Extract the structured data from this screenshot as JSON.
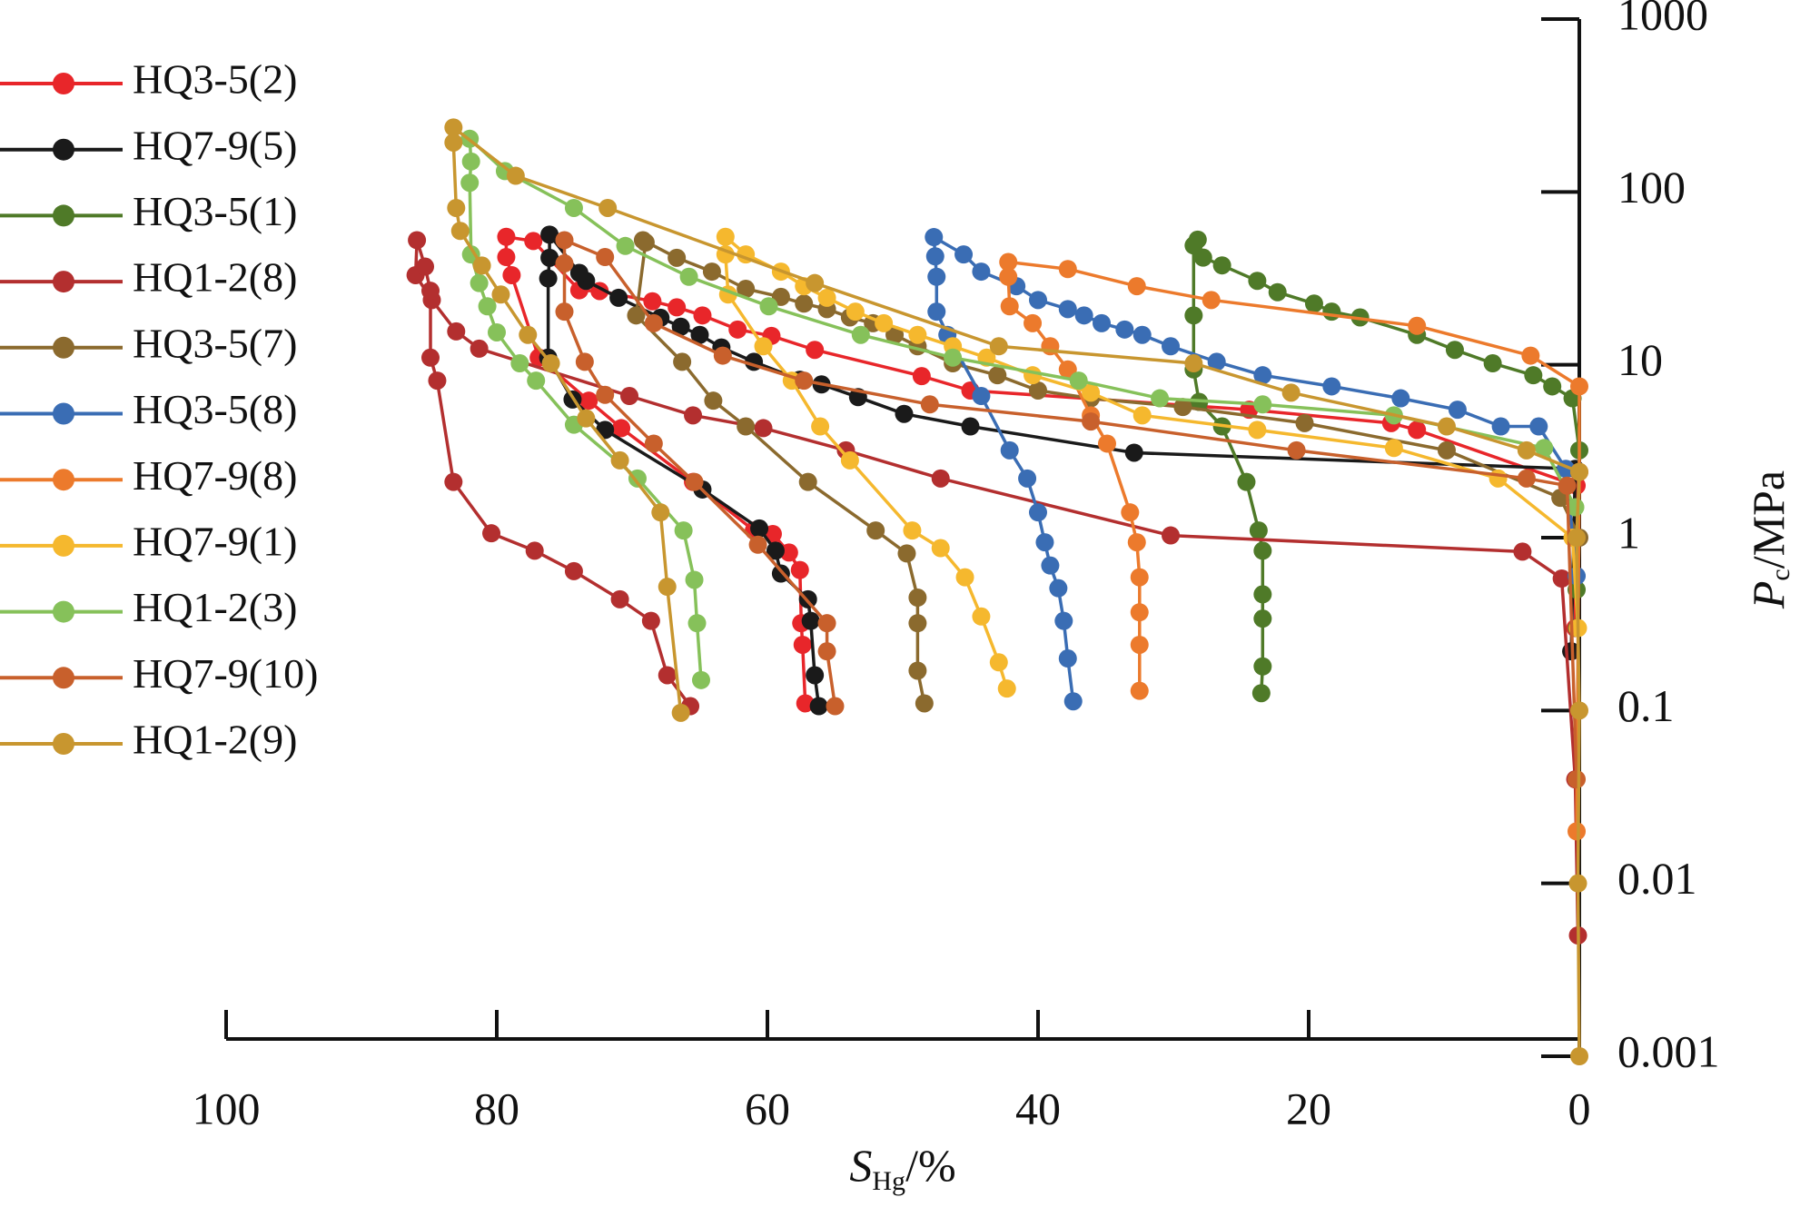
{
  "chart_data": {
    "type": "line",
    "x_label": {
      "symbol": "S",
      "subscript": "Hg",
      "unit": "/%"
    },
    "y_label": {
      "symbol": "P",
      "subscript": "c",
      "unit": "/MPa"
    },
    "xlim": [
      100,
      0
    ],
    "xticks": [
      100,
      80,
      60,
      40,
      20,
      0
    ],
    "ylim": [
      0.001,
      1000
    ],
    "yticks": [
      0.001,
      0.01,
      0.1,
      1,
      10,
      100,
      1000
    ],
    "ylog": true,
    "grid": false,
    "legend": "left",
    "series": [
      {
        "name": "HQ3-5(2)",
        "color": "#e8262a",
        "x": [
          0.3,
          0.2,
          12,
          13.9,
          24.4,
          45,
          48.6,
          56.5,
          59.7,
          62.2,
          64.8,
          66.7,
          68.5,
          72.4,
          73.9,
          77.3,
          79.3,
          79.3,
          78.9,
          76.9,
          73.2,
          70.8,
          65.5,
          61,
          59.6,
          58.4,
          57.6,
          57.5,
          57.4,
          57.2
        ],
        "values": [
          0.3,
          2,
          4.2,
          4.6,
          5.5,
          7.1,
          8.6,
          12.2,
          14.7,
          16,
          19.3,
          21.5,
          23.3,
          26.7,
          27,
          52,
          55,
          42,
          33,
          11,
          6.2,
          4.3,
          2.1,
          1.1,
          1.05,
          0.82,
          0.65,
          0.32,
          0.24,
          0.11
        ]
      },
      {
        "name": "HQ7-9(5)",
        "color": "#1a1a1a",
        "x": [
          0.6,
          0.3,
          32.9,
          45,
          49.9,
          53.3,
          56,
          57.6,
          61,
          63.4,
          65,
          66.4,
          67.9,
          71,
          73.4,
          73.9,
          76.1,
          76.1,
          76.2,
          76.2,
          74.4,
          72,
          64.8,
          60.6,
          59.4,
          59,
          57,
          56.8,
          56.5,
          56.2
        ],
        "values": [
          0.22,
          2.5,
          3.1,
          4.4,
          5.2,
          6.5,
          7.7,
          8.2,
          10.4,
          12.6,
          14.9,
          16.6,
          18.7,
          24.4,
          30.6,
          34,
          56.6,
          41.6,
          31.6,
          11,
          6.3,
          4.2,
          1.9,
          1.13,
          0.84,
          0.62,
          0.44,
          0.33,
          0.16,
          0.106
        ]
      },
      {
        "name": "HQ3-5(1)",
        "color": "#4f7a28",
        "x": [
          0.2,
          0,
          0.5,
          2,
          3.4,
          6.4,
          9.2,
          12,
          16.2,
          18.3,
          19.6,
          22.3,
          23.8,
          26.4,
          27.8,
          28.2,
          28.5,
          28.5,
          28.5,
          28.1,
          26.4,
          24.6,
          23.7,
          23.4,
          23.4,
          23.4,
          23.4,
          23.5
        ],
        "values": [
          0.5,
          3.2,
          6.4,
          7.5,
          8.7,
          10.2,
          12.2,
          14.9,
          18.8,
          20.3,
          22.6,
          26.3,
          30.6,
          37.6,
          41.7,
          53,
          49,
          19.3,
          9.4,
          6.1,
          4.4,
          2.1,
          1.1,
          0.84,
          0.47,
          0.34,
          0.18,
          0.126
        ]
      },
      {
        "name": "HQ1-2(8)",
        "color": "#b32f2f",
        "x": [
          0.1,
          0.3,
          1.3,
          4.2,
          30.2,
          47.2,
          54.2,
          60.3,
          65.5,
          70.2,
          81.3,
          83,
          84.8,
          86,
          85.9,
          85.3,
          84.9,
          84.9,
          84.4,
          83.2,
          80.4,
          77.2,
          74.3,
          70.9,
          68.6,
          67.4,
          65.7
        ],
        "values": [
          0.005,
          0.04,
          0.58,
          0.83,
          1.03,
          2.2,
          3.2,
          4.3,
          5.1,
          6.6,
          12.4,
          15.6,
          23.7,
          33,
          52.6,
          37,
          26.8,
          11,
          8.1,
          2.1,
          1.06,
          0.84,
          0.64,
          0.44,
          0.33,
          0.16,
          0.106
        ]
      },
      {
        "name": "HQ3-5(7)",
        "color": "#8b6a2e",
        "x": [
          0.2,
          0,
          1.4,
          9.8,
          20.3,
          29.3,
          36.1,
          40,
          43,
          46.3,
          48.9,
          50.6,
          52.2,
          53.9,
          55.6,
          57.3,
          59,
          61.6,
          64.1,
          66.7,
          69.2,
          69,
          69.7,
          66.3,
          64,
          61.6,
          57,
          52,
          49.7,
          48.9,
          48.9,
          48.9,
          48.4
        ],
        "values": [
          0.3,
          1,
          1.7,
          3.2,
          4.6,
          5.7,
          6.4,
          7.1,
          8.7,
          10.2,
          12.8,
          14.9,
          17.4,
          18.8,
          21,
          22.6,
          24.7,
          27.5,
          34.6,
          41.6,
          52.6,
          51,
          19.3,
          10.4,
          6.2,
          4.4,
          2.1,
          1.1,
          0.81,
          0.45,
          0.32,
          0.17,
          0.11
        ]
      },
      {
        "name": "HQ3-5(8)",
        "color": "#3a6db4",
        "x": [
          0.2,
          1,
          3,
          5.8,
          9,
          13.2,
          18.3,
          23.4,
          26.8,
          30.2,
          32.3,
          33.6,
          35.3,
          36.6,
          37.8,
          40,
          41.6,
          44.2,
          45.5,
          47.7,
          47.6,
          47.5,
          47.5,
          46.7,
          44.2,
          42.1,
          40.8,
          40,
          39.5,
          39.1,
          38.5,
          38.1,
          37.8,
          37.4
        ],
        "values": [
          0.6,
          2.5,
          4.4,
          4.4,
          5.5,
          6.4,
          7.5,
          8.7,
          10.4,
          12.8,
          14.9,
          16,
          17.4,
          19.3,
          21,
          23.7,
          28.5,
          34.6,
          43.5,
          54.8,
          42.4,
          32.3,
          20.3,
          14.9,
          6.6,
          3.2,
          2.2,
          1.4,
          0.94,
          0.69,
          0.51,
          0.33,
          0.2,
          0.113
        ]
      },
      {
        "name": "HQ7-9(8)",
        "color": "#ec7a2c",
        "x": [
          0.2,
          0,
          0,
          3.6,
          12,
          27.2,
          32.7,
          37.8,
          42.2,
          42.2,
          42.1,
          40.4,
          39.1,
          37.8,
          36.1,
          34.9,
          33.2,
          32.7,
          32.5,
          32.5,
          32.5,
          32.5
        ],
        "values": [
          0.02,
          2.4,
          7.5,
          11.3,
          16.8,
          23.7,
          28.5,
          35.8,
          39.3,
          32.3,
          21.8,
          17.4,
          12.8,
          9.4,
          5.1,
          3.5,
          1.4,
          0.94,
          0.59,
          0.37,
          0.24,
          0.13
        ]
      },
      {
        "name": "HQ7-9(1)",
        "color": "#f5b82e",
        "x": [
          0.1,
          0.5,
          6,
          13.7,
          23.8,
          32.3,
          36.1,
          40.4,
          43.8,
          46.3,
          48.9,
          51.4,
          53.5,
          55.6,
          57.3,
          59,
          61.6,
          63.1,
          63.1,
          62.9,
          60.3,
          58.2,
          56.1,
          53.9,
          49.3,
          47.2,
          45.4,
          44.2,
          42.9,
          42.3
        ],
        "values": [
          0.3,
          1,
          2.2,
          3.3,
          4.2,
          5.1,
          6.9,
          8.7,
          11,
          12.8,
          14.9,
          17.4,
          20.3,
          24.4,
          28.5,
          34.6,
          43.5,
          55,
          43.5,
          25.5,
          12.8,
          8.1,
          4.4,
          2.8,
          1.1,
          0.87,
          0.59,
          0.35,
          0.19,
          0.134
        ]
      },
      {
        "name": "HQ1-2(3)",
        "color": "#86c15a",
        "x": [
          0.3,
          2.6,
          13.7,
          23.4,
          31,
          37,
          46.3,
          53.1,
          59.9,
          65.8,
          70.5,
          74.3,
          79.4,
          82,
          81.9,
          82,
          81.9,
          81.3,
          80.7,
          80,
          78.3,
          77.1,
          74.3,
          69.6,
          66.2,
          65.4,
          65.2,
          64.9
        ],
        "values": [
          1.5,
          3.3,
          5.1,
          5.9,
          6.4,
          8.1,
          11,
          14.9,
          21.8,
          32.3,
          48.7,
          80.8,
          132,
          203,
          150,
          113,
          43.5,
          29.7,
          21.8,
          15.4,
          10.2,
          8.1,
          4.5,
          2.2,
          1.1,
          0.57,
          0.32,
          0.15
        ]
      },
      {
        "name": "HQ7-9(10)",
        "color": "#c8602c",
        "x": [
          0.2,
          0.9,
          3.9,
          20.9,
          36.1,
          48,
          57.3,
          63.3,
          68.4,
          72,
          75,
          75,
          75,
          73.5,
          72,
          68.4,
          65.4,
          60.7,
          55.6,
          55.6,
          55
        ],
        "values": [
          0.04,
          2,
          2.2,
          3.2,
          4.7,
          5.9,
          8.1,
          11.3,
          17.4,
          42,
          52.6,
          38.6,
          20.3,
          10.4,
          6.7,
          3.5,
          2.1,
          0.91,
          0.32,
          0.22,
          0.106
        ]
      },
      {
        "name": "HQ1-2(9)",
        "color": "#c8962f",
        "x": [
          0,
          0.1,
          0,
          0.2,
          0,
          3.9,
          9.8,
          21.3,
          28.5,
          42.9,
          56.5,
          71.8,
          78.6,
          83.2,
          83.2,
          83,
          82.7,
          81.1,
          79.7,
          77.7,
          76,
          73.4,
          70.9,
          67.9,
          67.4,
          66.4
        ],
        "values": [
          0.001,
          0.01,
          0.1,
          1,
          2.4,
          3.2,
          4.4,
          6.9,
          10.2,
          12.8,
          29.7,
          80.8,
          124,
          236,
          193,
          80.8,
          59.5,
          37.5,
          25.5,
          14.9,
          10.2,
          4.9,
          2.8,
          1.4,
          0.52,
          0.097
        ]
      }
    ]
  }
}
